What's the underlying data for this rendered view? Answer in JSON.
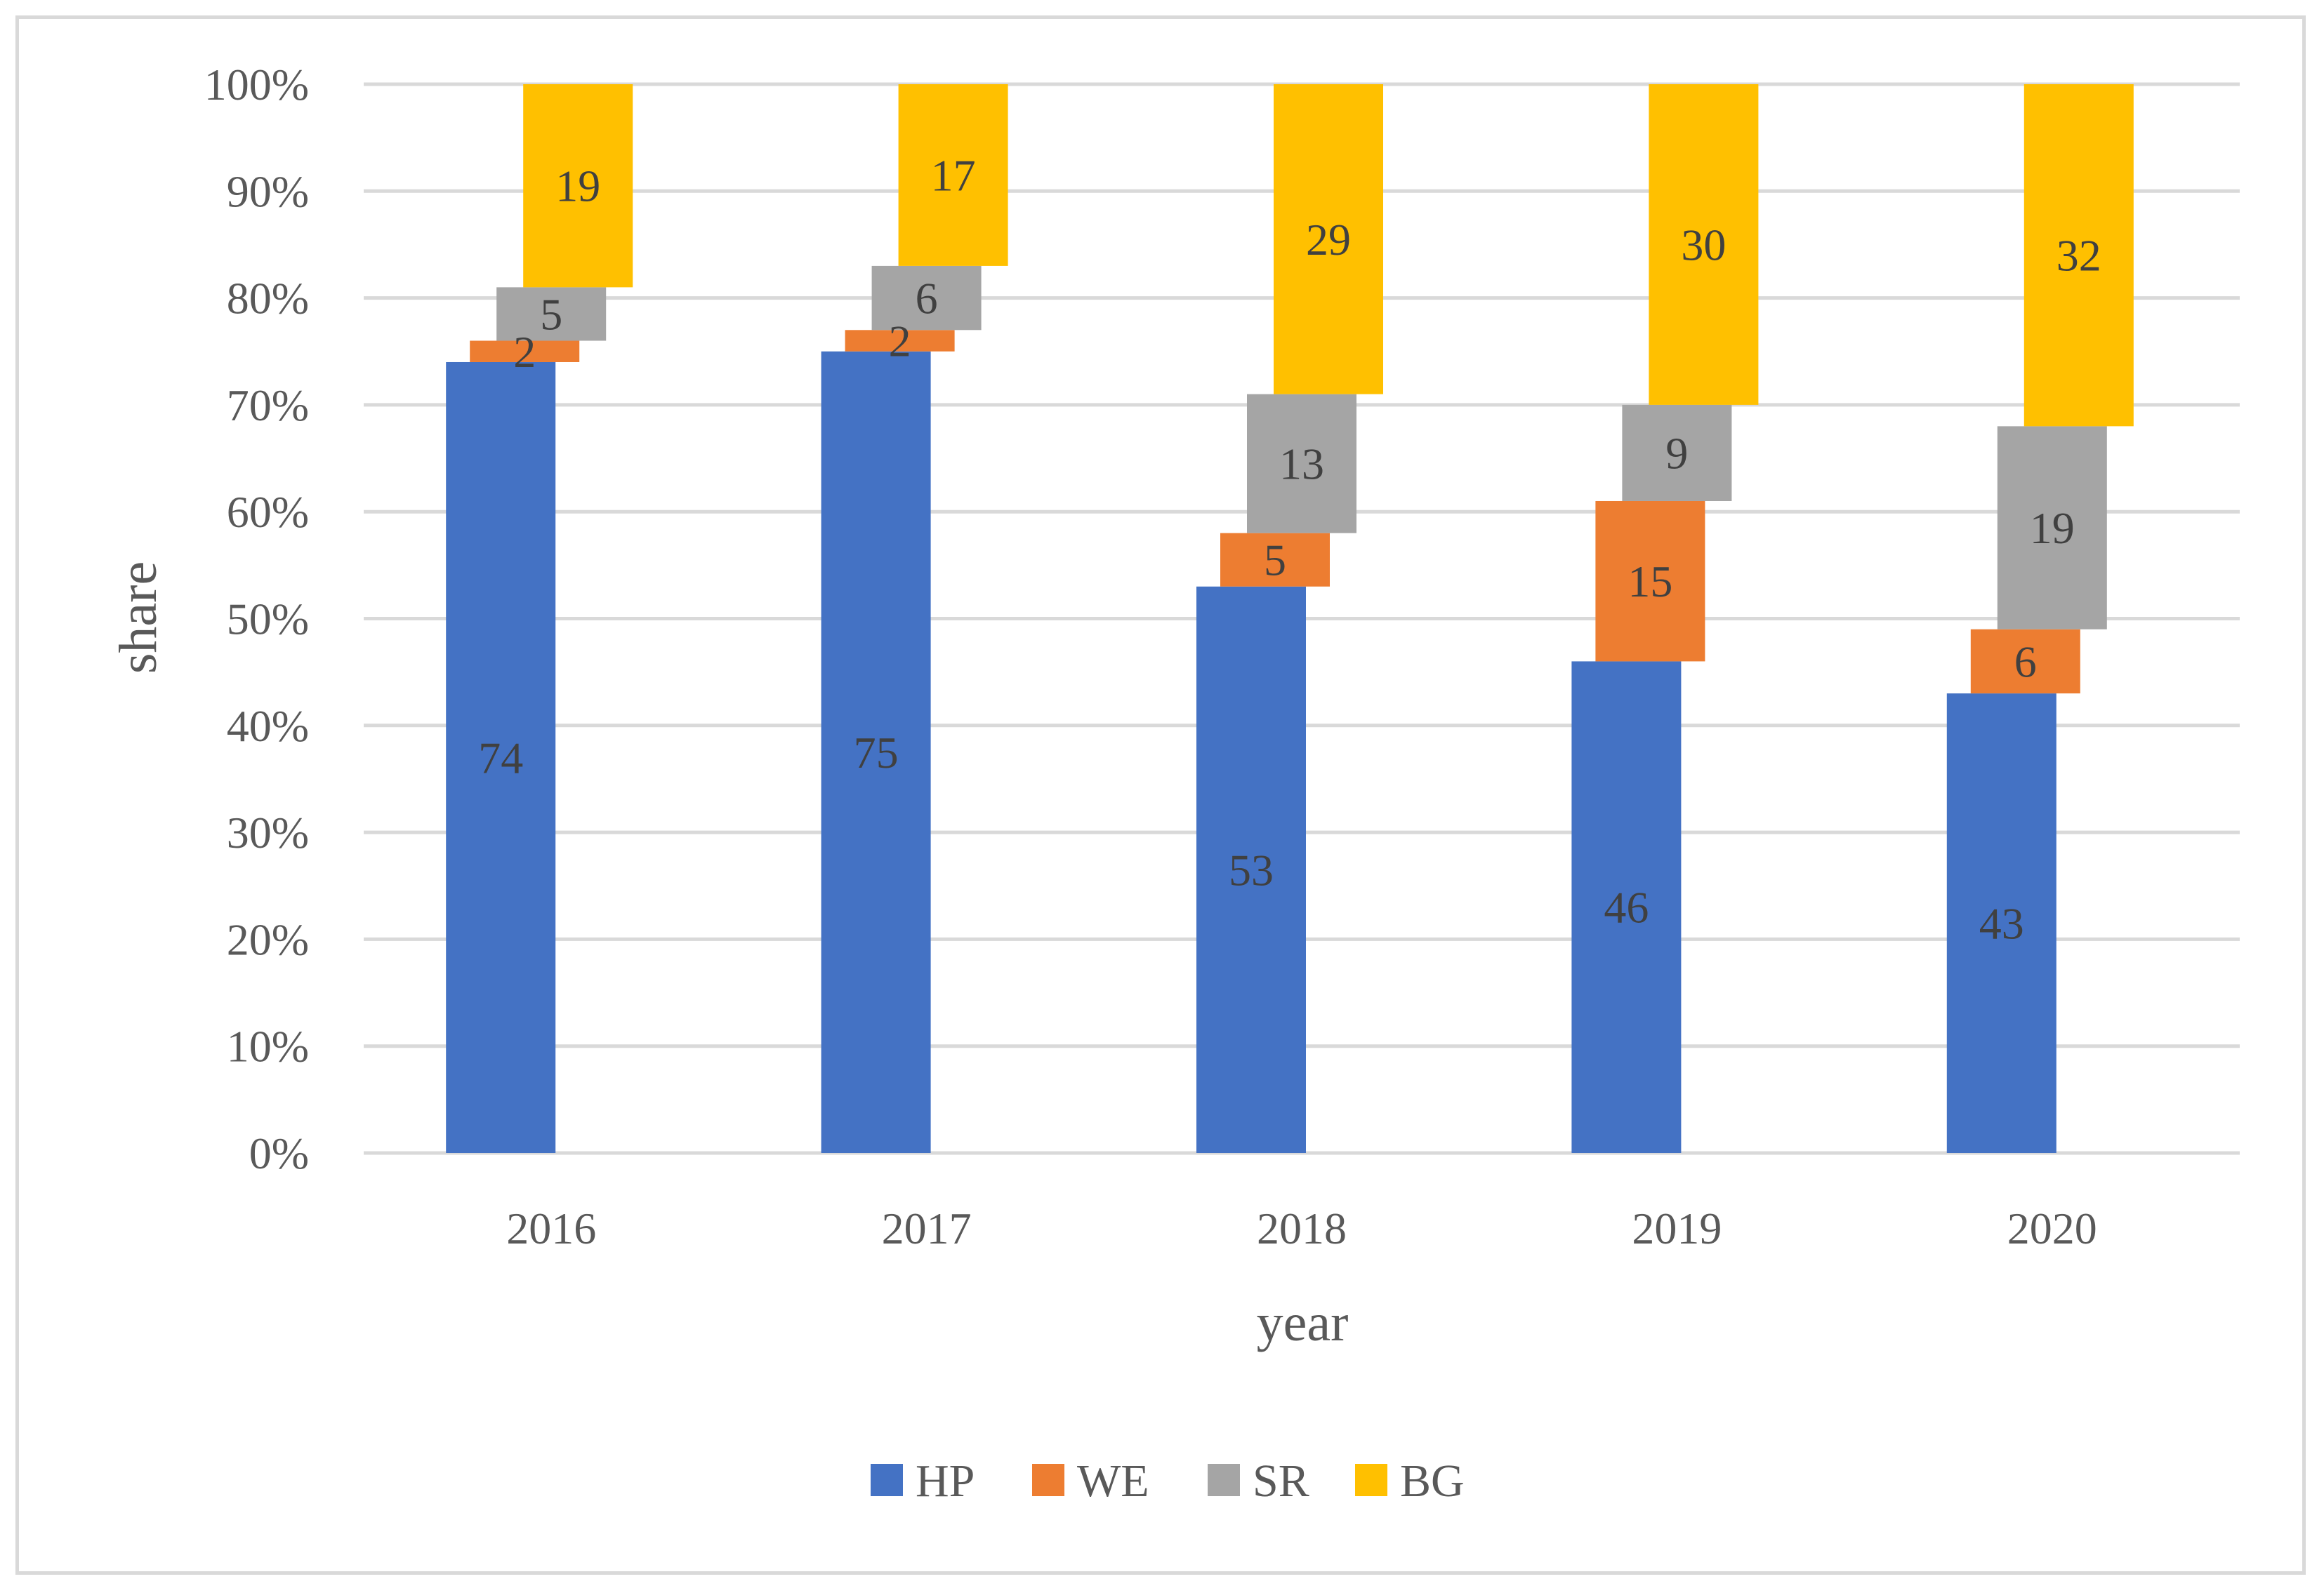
{
  "chart_data": {
    "type": "bar",
    "stacked": true,
    "title": "",
    "xlabel": "year",
    "ylabel": "share",
    "ylim": [
      0,
      100
    ],
    "y_ticks": [
      "0%",
      "10%",
      "20%",
      "30%",
      "40%",
      "50%",
      "60%",
      "70%",
      "80%",
      "90%",
      "100%"
    ],
    "categories": [
      "2016",
      "2017",
      "2018",
      "2019",
      "2020"
    ],
    "series": [
      {
        "name": "HP",
        "color": "#4472c4",
        "values": [
          74,
          75,
          53,
          46,
          43
        ]
      },
      {
        "name": "WE",
        "color": "#ed7d31",
        "values": [
          2,
          2,
          5,
          15,
          6
        ]
      },
      {
        "name": "SR",
        "color": "#a5a5a5",
        "values": [
          5,
          6,
          13,
          9,
          19
        ]
      },
      {
        "name": "BG",
        "color": "#ffc000",
        "values": [
          19,
          17,
          29,
          30,
          32
        ]
      }
    ],
    "legend_position": "bottom",
    "grid": true
  }
}
